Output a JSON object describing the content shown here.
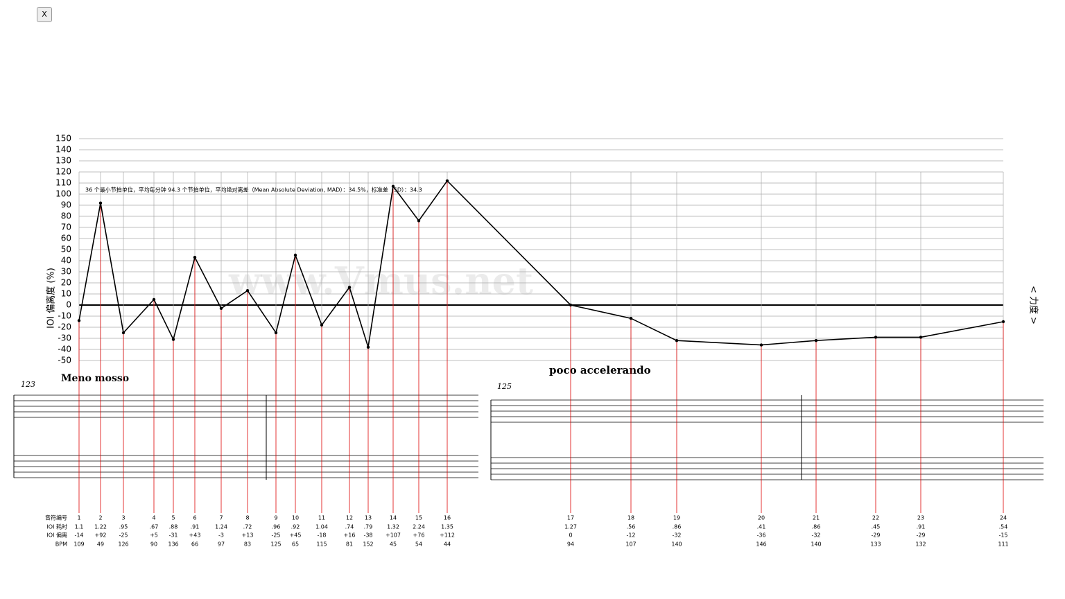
{
  "close_button": "X",
  "chart_data": {
    "type": "line",
    "ylabel": "IOI 偏离度 (%)",
    "right_label": "< 力度 >",
    "watermark": "www.Vmus.net",
    "annotation": "36 个最小节拍单位，平均每分钟 94.3 个节拍单位，平均绝对离差（Mean Absolute Deviation, MAD）：34.5%，标准差（SD）：34.3",
    "categories": [
      "1",
      "2",
      "3",
      "4",
      "5",
      "6",
      "7",
      "8",
      "9",
      "10",
      "11",
      "12",
      "13",
      "14",
      "15",
      "16",
      "17",
      "18",
      "19",
      "20",
      "21",
      "22",
      "23",
      "24"
    ],
    "series": [
      {
        "name": "IOI 偏离",
        "color": "#000000",
        "values": [
          -14,
          92,
          -25,
          5,
          -31,
          43,
          -3,
          13,
          -25,
          45,
          -18,
          16,
          -38,
          107,
          76,
          112,
          0,
          -12,
          -32,
          -36,
          -32,
          -29,
          -29,
          -15
        ],
        "value_labels": [
          "-14",
          "+92",
          "-25",
          "+5",
          "-31",
          "+43",
          "-3",
          "+13",
          "-25",
          "+45",
          "-18",
          "+16",
          "-38",
          "+107",
          "+76",
          "+112",
          "0",
          "-12",
          "-32",
          "-36",
          "-32",
          "-29",
          "-29",
          "-15"
        ]
      }
    ],
    "ylim": [
      -50,
      150
    ],
    "yticks": [
      -50,
      -40,
      -30,
      -20,
      -10,
      0,
      10,
      20,
      30,
      40,
      50,
      60,
      70,
      80,
      90,
      100,
      110,
      120,
      130,
      140,
      150
    ],
    "grid": true
  },
  "table": {
    "row_headers": [
      "音符编号",
      "IOI 耗时",
      "IOI 偏离",
      "BPM"
    ],
    "ioi_time": [
      "1.1",
      "1.22",
      ".95",
      ".67",
      ".88",
      ".91",
      "1.24",
      ".72",
      ".96",
      ".92",
      "1.04",
      ".74",
      ".79",
      "1.32",
      "2.24",
      "1.35",
      "1.27",
      ".56",
      ".86",
      ".41",
      ".86",
      ".45",
      ".91",
      ".54"
    ],
    "bpm": [
      "109",
      "49",
      "126",
      "90",
      "136",
      "66",
      "97",
      "83",
      "125",
      "65",
      "115",
      "81",
      "152",
      "45",
      "54",
      "44",
      "94",
      "107",
      "140",
      "146",
      "140",
      "133",
      "132",
      "111"
    ]
  },
  "score": {
    "tempo1": "Meno mosso",
    "measure1": "123",
    "tempo2": "poco accelerando",
    "measure2": "125"
  }
}
